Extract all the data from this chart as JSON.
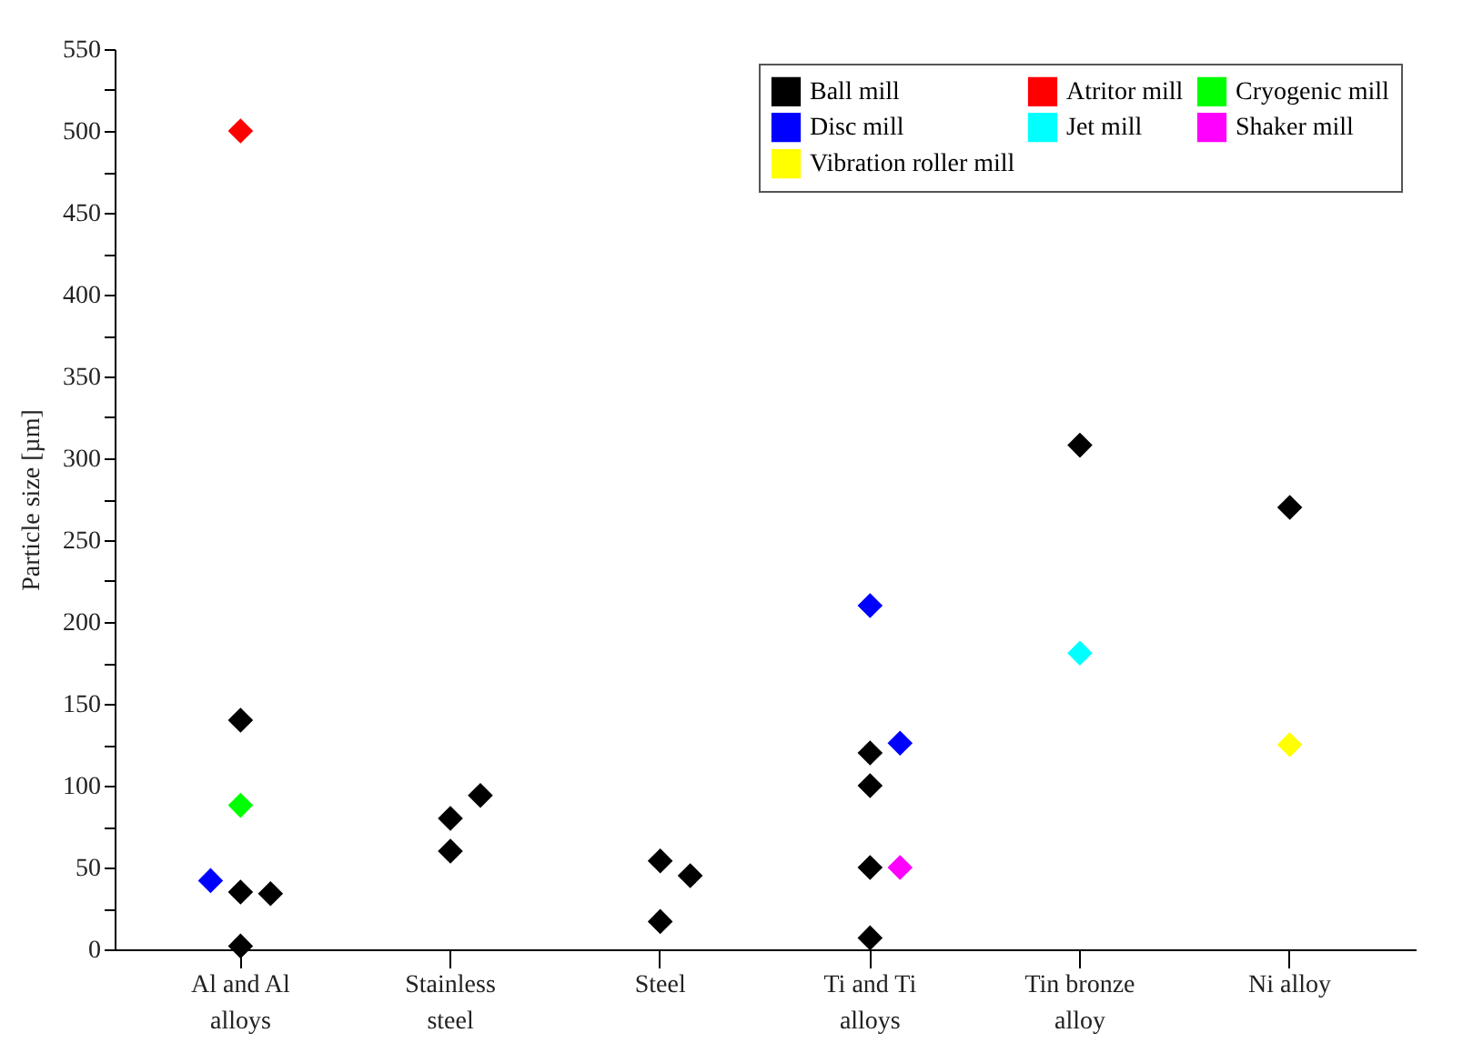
{
  "chart_data": {
    "type": "scatter",
    "ylabel": "Particle size [µm]",
    "ylim": [
      0,
      550
    ],
    "categories": [
      "Al and Al alloys",
      "Stainless steel",
      "Steel",
      "Ti and Ti alloys",
      "Tin bronze alloy",
      "Ni alloy"
    ],
    "yticks": [
      0,
      {
        "value": 25,
        "label": null
      },
      50,
      {
        "value": 75,
        "label": null
      },
      100,
      {
        "value": 125,
        "label": null
      },
      150,
      {
        "value": 175,
        "label": null
      },
      200,
      {
        "value": 225,
        "label": null
      },
      250,
      {
        "value": 275,
        "label": null
      },
      300,
      {
        "value": 325,
        "label": null
      },
      350,
      {
        "value": 375,
        "label": null
      },
      400,
      {
        "value": 425,
        "label": null
      },
      450,
      {
        "value": 475,
        "label": null
      },
      500,
      {
        "value": 525,
        "label": null
      },
      550
    ],
    "marker": "diamond",
    "legend": "top right",
    "grid": false,
    "series": [
      {
        "name": "Ball mill",
        "color": "#000000",
        "x": [
          "Al and Al alloys",
          "Al and Al alloys",
          "Al and Al alloys",
          "Al and Al alloys",
          "Stainless steel",
          "Stainless steel",
          "Stainless steel",
          "Steel",
          "Steel",
          "Steel",
          "Ti and Ti alloys",
          "Ti and Ti alloys",
          "Ti and Ti alloys",
          "Ti and Ti alloys",
          "Tin bronze alloy",
          "Ni alloy"
        ],
        "values": [
          35,
          34,
          2,
          140,
          80,
          94,
          60,
          54,
          45,
          17,
          50,
          120,
          100,
          7,
          308,
          270
        ]
      },
      {
        "name": "Atritor mill",
        "color": "#ff0000",
        "x": [
          "Al and Al alloys"
        ],
        "values": [
          500
        ]
      },
      {
        "name": "Cryogenic mill",
        "color": "#00ff00",
        "x": [
          "Al and Al alloys"
        ],
        "values": [
          88
        ]
      },
      {
        "name": "Disc mill",
        "color": "#0000ff",
        "x": [
          "Al and Al alloys",
          "Ti and Ti alloys",
          "Ti and Ti alloys"
        ],
        "values": [
          42,
          210,
          126
        ]
      },
      {
        "name": "Jet mill",
        "color": "#00ffff",
        "x": [
          "Tin bronze alloy"
        ],
        "values": [
          181
        ]
      },
      {
        "name": "Shaker mill",
        "color": "#ff00ff",
        "x": [
          "Ti and Ti alloys"
        ],
        "values": [
          50
        ]
      },
      {
        "name": "Vibration roller mill",
        "color": "#ffff00",
        "x": [
          "Ni alloy"
        ],
        "values": [
          125
        ]
      }
    ]
  }
}
